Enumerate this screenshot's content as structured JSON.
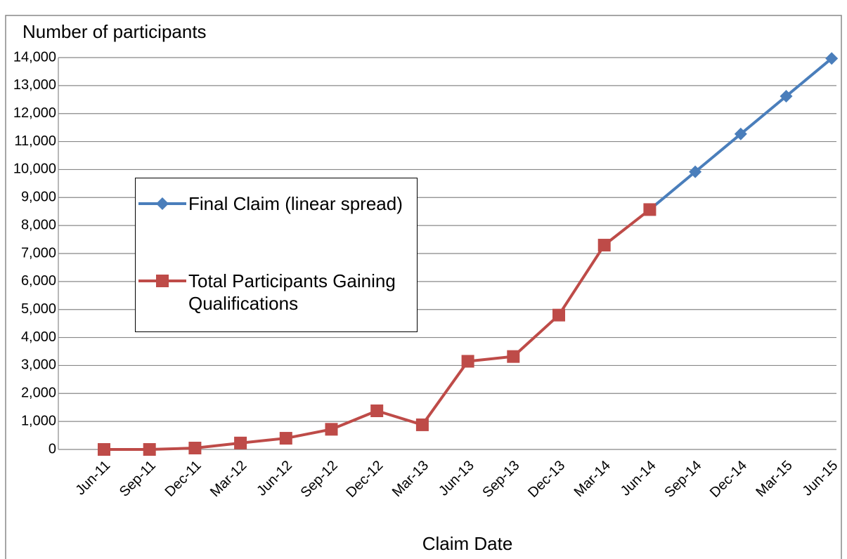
{
  "chart_data": {
    "type": "line",
    "y_label": "Number of participants",
    "x_label": "Claim Date",
    "categories": [
      "Jun-11",
      "Sep-11",
      "Dec-11",
      "Mar-12",
      "Jun-12",
      "Sep-12",
      "Dec-12",
      "Mar-13",
      "Jun-13",
      "Sep-13",
      "Dec-13",
      "Mar-14",
      "Jun-14",
      "Sep-14",
      "Dec-14",
      "Mar-15",
      "Jun-15"
    ],
    "series": [
      {
        "name": "Final Claim (linear spread)",
        "color": "#4a7ebb",
        "marker": "diamond",
        "values": [
          null,
          null,
          null,
          null,
          null,
          null,
          null,
          null,
          null,
          null,
          null,
          null,
          8570,
          9920,
          11270,
          12620,
          13970
        ]
      },
      {
        "name": "Total Participants Gaining Qualifications",
        "color": "#be4b48",
        "marker": "square",
        "values": [
          0,
          0,
          50,
          230,
          400,
          720,
          1380,
          880,
          3150,
          3320,
          4800,
          7300,
          8570,
          null,
          null,
          null,
          null
        ]
      }
    ],
    "ylim": [
      0,
      14000
    ],
    "yticks": [
      0,
      {
        "value": 1000,
        "label": "1,000"
      },
      {
        "value": 2000,
        "label": "2,000"
      },
      {
        "value": 3000,
        "label": "3,000"
      },
      {
        "value": 4000,
        "label": "4,000"
      },
      {
        "value": 5000,
        "label": "5,000"
      },
      {
        "value": 6000,
        "label": "6,000"
      },
      {
        "value": 7000,
        "label": "7,000"
      },
      {
        "value": 8000,
        "label": "8,000"
      },
      {
        "value": 9000,
        "label": "9,000"
      },
      {
        "value": 10000,
        "label": "10,000"
      },
      {
        "value": 11000,
        "label": "11,000"
      },
      {
        "value": 12000,
        "label": "12,000"
      },
      {
        "value": 13000,
        "label": "13,000"
      },
      {
        "value": 14000,
        "label": "14,000"
      }
    ],
    "grid": true
  }
}
